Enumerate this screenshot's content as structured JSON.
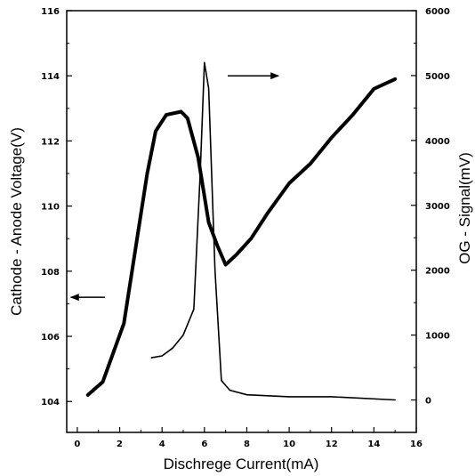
{
  "chart_data": {
    "type": "line",
    "title": "",
    "xlabel": "Dischrege Current(mA)",
    "ylabel_left": "Cathode - Anode Voltage(V)",
    "ylabel_right": "OG - Signal(mV)",
    "xlim": [
      -0.5,
      16
    ],
    "ylim_left": [
      103.05,
      116
    ],
    "ylim_right": [
      -500,
      6000
    ],
    "x_ticks": [
      "0",
      "2",
      "4",
      "6",
      "8",
      "10",
      "12",
      "14",
      "16"
    ],
    "y_left_ticks": [
      "104",
      "106",
      "108",
      "110",
      "112",
      "114",
      "116"
    ],
    "y_right_ticks": [
      "0",
      "1000",
      "2000",
      "3000",
      "4000",
      "5000",
      "6000"
    ],
    "grid": false,
    "series": [
      {
        "axis": "left",
        "line_weight": "thick",
        "x": [
          0.5,
          1.2,
          2.2,
          3.3,
          3.7,
          4.2,
          4.9,
          5.2,
          5.7,
          6.2,
          6.6,
          7.0,
          7.5,
          8.2,
          9.0,
          10.0,
          11.0,
          12.0,
          13.0,
          14.0,
          15.0
        ],
        "y": [
          104.2,
          104.6,
          106.4,
          111.0,
          112.3,
          112.8,
          112.9,
          112.7,
          111.5,
          109.5,
          108.8,
          108.2,
          108.5,
          109.0,
          109.8,
          110.7,
          111.3,
          112.1,
          112.8,
          113.6,
          113.9
        ]
      },
      {
        "axis": "right",
        "line_weight": "thin",
        "x": [
          3.5,
          4.0,
          4.5,
          5.0,
          5.5,
          5.8,
          6.0,
          6.2,
          6.5,
          6.8,
          7.2,
          8.0,
          10.0,
          12.0,
          15.0
        ],
        "y": [
          650,
          680,
          800,
          1000,
          1400,
          3500,
          5200,
          4800,
          2000,
          300,
          150,
          80,
          50,
          50,
          0
        ]
      },
      {
        "axis": "annotation",
        "marker": "arrow-left",
        "x": [
          1.3,
          -0.3
        ],
        "y": [
          107.2,
          107.2
        ]
      },
      {
        "axis": "annotation",
        "marker": "arrow-right",
        "x": [
          7.1,
          9.5
        ],
        "y": [
          114.0,
          114.0
        ]
      }
    ]
  }
}
